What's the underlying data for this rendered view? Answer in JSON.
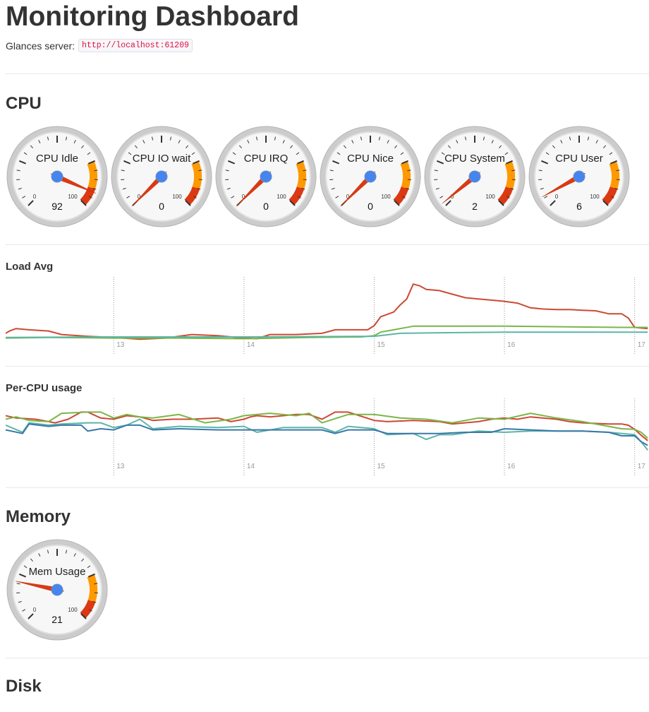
{
  "header": {
    "title": "Monitoring Dashboard",
    "server_label": "Glances server:",
    "server_url": "http://localhost:61209"
  },
  "sections": {
    "cpu": "CPU",
    "memory": "Memory",
    "disk": "Disk"
  },
  "colors": {
    "red_series": "#cc4a35",
    "green_series": "#7ab648",
    "teal_series": "#5bb5a8",
    "blue_series": "#3a78a8",
    "gauge_orange": "#ff9900",
    "gauge_red": "#dc3912",
    "needle": "#dc3912",
    "needle_center": "#4684ee"
  },
  "cpu_gauges": [
    {
      "label": "CPU Idle",
      "value": 92,
      "min": "0",
      "max": "100"
    },
    {
      "label": "CPU IO wait",
      "value": 0,
      "min": "0",
      "max": "100"
    },
    {
      "label": "CPU IRQ",
      "value": 0,
      "min": "0",
      "max": "100"
    },
    {
      "label": "CPU Nice",
      "value": 0,
      "min": "0",
      "max": "100"
    },
    {
      "label": "CPU System",
      "value": 2,
      "min": "0",
      "max": "100"
    },
    {
      "label": "CPU User",
      "value": 6,
      "min": "0",
      "max": "100"
    }
  ],
  "memory_gauges": [
    {
      "label": "Mem Usage",
      "value": 21,
      "min": "0",
      "max": "100"
    }
  ],
  "chart_data": [
    {
      "type": "line",
      "title": "Load Avg",
      "x_ticks": [
        "13",
        "14",
        "15",
        "16",
        "17"
      ],
      "xlim": [
        12.17,
        17.11
      ],
      "ylim": [
        0,
        1
      ],
      "grid": "vertical",
      "legend": "none",
      "series": [
        {
          "color": "#cc4a35",
          "x": [
            12.17,
            12.2,
            12.25,
            12.35,
            12.5,
            12.6,
            12.8,
            13.0,
            13.2,
            13.4,
            13.6,
            13.8,
            14.0,
            14.1,
            14.2,
            14.4,
            14.6,
            14.7,
            14.8,
            14.95,
            15.0,
            15.05,
            15.15,
            15.2,
            15.25,
            15.3,
            15.35,
            15.4,
            15.5,
            15.6,
            15.7,
            15.8,
            15.9,
            16.0,
            16.1,
            16.2,
            16.3,
            16.4,
            16.5,
            16.6,
            16.7,
            16.8,
            16.9,
            16.95,
            17.0,
            17.1
          ],
          "y": [
            0.12,
            0.16,
            0.2,
            0.18,
            0.16,
            0.1,
            0.07,
            0.05,
            0.02,
            0.04,
            0.1,
            0.08,
            0.04,
            0.03,
            0.1,
            0.1,
            0.12,
            0.18,
            0.18,
            0.18,
            0.25,
            0.4,
            0.48,
            0.6,
            0.7,
            0.95,
            0.92,
            0.86,
            0.84,
            0.78,
            0.72,
            0.7,
            0.68,
            0.66,
            0.63,
            0.55,
            0.53,
            0.52,
            0.52,
            0.51,
            0.5,
            0.45,
            0.45,
            0.38,
            0.22,
            0.2
          ]
        },
        {
          "color": "#7ab648",
          "x": [
            12.17,
            12.5,
            13.0,
            13.5,
            14.0,
            14.5,
            14.9,
            15.0,
            15.05,
            15.15,
            15.3,
            15.5,
            16.0,
            16.5,
            16.9,
            17.1
          ],
          "y": [
            0.04,
            0.05,
            0.04,
            0.04,
            0.03,
            0.05,
            0.06,
            0.08,
            0.14,
            0.18,
            0.24,
            0.24,
            0.24,
            0.23,
            0.22,
            0.22
          ]
        },
        {
          "color": "#5bb5a8",
          "x": [
            12.17,
            13.0,
            14.0,
            15.0,
            15.2,
            15.5,
            16.0,
            17.1
          ],
          "y": [
            0.05,
            0.06,
            0.06,
            0.07,
            0.12,
            0.13,
            0.14,
            0.14
          ]
        }
      ]
    },
    {
      "type": "line",
      "title": "Per-CPU usage",
      "x_ticks": [
        "13",
        "14",
        "15",
        "16",
        "17"
      ],
      "xlim": [
        12.17,
        17.11
      ],
      "ylim": [
        0,
        1
      ],
      "grid": "vertical",
      "legend": "none",
      "series": [
        {
          "color": "#cc4a35",
          "x": [
            12.17,
            12.25,
            12.4,
            12.5,
            12.55,
            12.65,
            12.75,
            12.8,
            12.9,
            13.0,
            13.1,
            13.2,
            13.3,
            13.45,
            13.6,
            13.8,
            13.9,
            14.0,
            14.05,
            14.1,
            14.2,
            14.4,
            14.5,
            14.6,
            14.7,
            14.8,
            15.0,
            15.1,
            15.3,
            15.5,
            15.6,
            15.8,
            15.9,
            16.0,
            16.1,
            16.2,
            16.4,
            16.5,
            16.6,
            16.8,
            16.9,
            16.95,
            17.0,
            17.05,
            17.1
          ],
          "y": [
            0.78,
            0.74,
            0.72,
            0.68,
            0.66,
            0.72,
            0.84,
            0.84,
            0.74,
            0.72,
            0.78,
            0.76,
            0.7,
            0.72,
            0.72,
            0.74,
            0.68,
            0.72,
            0.76,
            0.78,
            0.76,
            0.8,
            0.8,
            0.72,
            0.84,
            0.84,
            0.7,
            0.68,
            0.7,
            0.68,
            0.64,
            0.68,
            0.72,
            0.74,
            0.72,
            0.76,
            0.72,
            0.68,
            0.66,
            0.64,
            0.64,
            0.62,
            0.55,
            0.45,
            0.36
          ]
        },
        {
          "color": "#7ab648",
          "x": [
            12.17,
            12.25,
            12.35,
            12.5,
            12.6,
            12.8,
            12.9,
            13.0,
            13.1,
            13.2,
            13.3,
            13.5,
            13.7,
            13.9,
            14.0,
            14.2,
            14.4,
            14.5,
            14.6,
            14.8,
            15.0,
            15.2,
            15.4,
            15.6,
            15.8,
            16.0,
            16.2,
            16.4,
            16.6,
            16.8,
            16.9,
            17.0,
            17.05,
            17.1
          ],
          "y": [
            0.72,
            0.76,
            0.7,
            0.68,
            0.82,
            0.84,
            0.84,
            0.74,
            0.8,
            0.76,
            0.74,
            0.8,
            0.66,
            0.72,
            0.78,
            0.82,
            0.78,
            0.82,
            0.66,
            0.8,
            0.8,
            0.74,
            0.72,
            0.66,
            0.74,
            0.72,
            0.82,
            0.74,
            0.68,
            0.6,
            0.56,
            0.55,
            0.5,
            0.4
          ]
        },
        {
          "color": "#5bb5a8",
          "x": [
            12.17,
            12.3,
            12.35,
            12.5,
            12.6,
            12.8,
            12.9,
            13.0,
            13.1,
            13.2,
            13.3,
            13.5,
            13.8,
            14.0,
            14.1,
            14.3,
            14.6,
            14.7,
            14.8,
            15.0,
            15.1,
            15.3,
            15.4,
            15.5,
            15.6,
            15.8,
            16.0,
            16.2,
            16.4,
            16.6,
            16.8,
            17.0,
            17.05,
            17.1
          ],
          "y": [
            0.62,
            0.5,
            0.66,
            0.62,
            0.64,
            0.66,
            0.66,
            0.58,
            0.62,
            0.72,
            0.56,
            0.6,
            0.58,
            0.6,
            0.5,
            0.58,
            0.58,
            0.5,
            0.6,
            0.56,
            0.46,
            0.48,
            0.38,
            0.46,
            0.46,
            0.52,
            0.5,
            0.52,
            0.52,
            0.52,
            0.5,
            0.46,
            0.34,
            0.2
          ]
        },
        {
          "color": "#3a78a8",
          "x": [
            12.17,
            12.3,
            12.35,
            12.5,
            12.6,
            12.75,
            12.8,
            12.9,
            13.0,
            13.1,
            13.2,
            13.3,
            13.5,
            13.8,
            14.0,
            14.1,
            14.3,
            14.6,
            14.7,
            14.8,
            15.0,
            15.1,
            15.3,
            15.5,
            15.7,
            15.9,
            16.0,
            16.2,
            16.4,
            16.6,
            16.8,
            16.9,
            17.0,
            17.05,
            17.1
          ],
          "y": [
            0.54,
            0.48,
            0.64,
            0.6,
            0.62,
            0.62,
            0.52,
            0.56,
            0.54,
            0.62,
            0.62,
            0.54,
            0.56,
            0.54,
            0.54,
            0.54,
            0.54,
            0.54,
            0.48,
            0.54,
            0.54,
            0.48,
            0.48,
            0.48,
            0.5,
            0.5,
            0.56,
            0.54,
            0.52,
            0.52,
            0.5,
            0.44,
            0.44,
            0.34,
            0.28
          ]
        }
      ]
    }
  ]
}
